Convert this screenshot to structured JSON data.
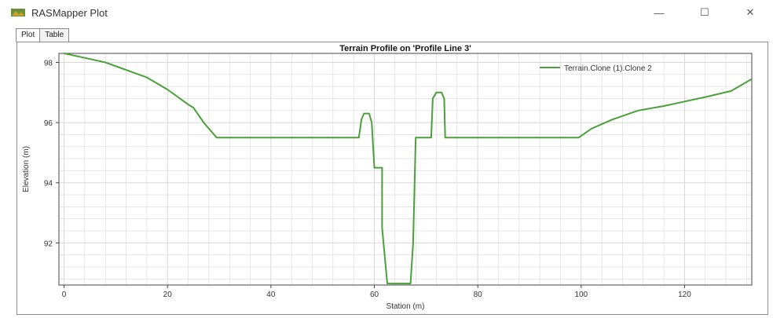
{
  "window": {
    "title": "RASMapper Plot",
    "minimize_glyph": "—",
    "maximize_glyph": "☐",
    "close_glyph": "✕"
  },
  "tabs": [
    {
      "label": "Plot",
      "active": true
    },
    {
      "label": "Table",
      "active": false
    }
  ],
  "colors": {
    "series": "#4aa03a",
    "grid": "#d8d8d8",
    "axis": "#444444"
  },
  "chart_data": {
    "type": "line",
    "title": "Terrain Profile on 'Profile Line 3'",
    "xlabel": "Station (m)",
    "ylabel": "Elevation (m)",
    "xlim": [
      -1,
      133
    ],
    "ylim": [
      90.6,
      98.3
    ],
    "xticks": [
      0,
      20,
      40,
      60,
      80,
      100,
      120
    ],
    "yticks": [
      92,
      94,
      96,
      98
    ],
    "grid": true,
    "legend_position": "top-right",
    "series": [
      {
        "name": "Terrain.Clone (1).Clone 2",
        "points": [
          [
            0,
            98.3
          ],
          [
            4,
            98.15
          ],
          [
            8,
            98.0
          ],
          [
            12,
            97.75
          ],
          [
            16,
            97.5
          ],
          [
            20,
            97.1
          ],
          [
            24,
            96.6
          ],
          [
            25,
            96.5
          ],
          [
            27,
            96.0
          ],
          [
            29.5,
            95.5
          ],
          [
            57,
            95.5
          ],
          [
            57.5,
            96.1
          ],
          [
            58,
            96.3
          ],
          [
            59,
            96.3
          ],
          [
            59.5,
            96.0
          ],
          [
            60,
            94.5
          ],
          [
            61.5,
            94.5
          ],
          [
            61.5,
            92.5
          ],
          [
            62.5,
            90.65
          ],
          [
            67,
            90.65
          ],
          [
            67.5,
            92.0
          ],
          [
            68,
            95.5
          ],
          [
            71,
            95.5
          ],
          [
            71.3,
            96.8
          ],
          [
            72,
            97.0
          ],
          [
            73,
            97.0
          ],
          [
            73.5,
            96.8
          ],
          [
            73.7,
            95.5
          ],
          [
            99.5,
            95.5
          ],
          [
            102,
            95.8
          ],
          [
            106,
            96.1
          ],
          [
            111,
            96.4
          ],
          [
            116,
            96.55
          ],
          [
            120,
            96.7
          ],
          [
            124,
            96.85
          ],
          [
            129,
            97.05
          ],
          [
            133,
            97.45
          ]
        ]
      }
    ]
  }
}
